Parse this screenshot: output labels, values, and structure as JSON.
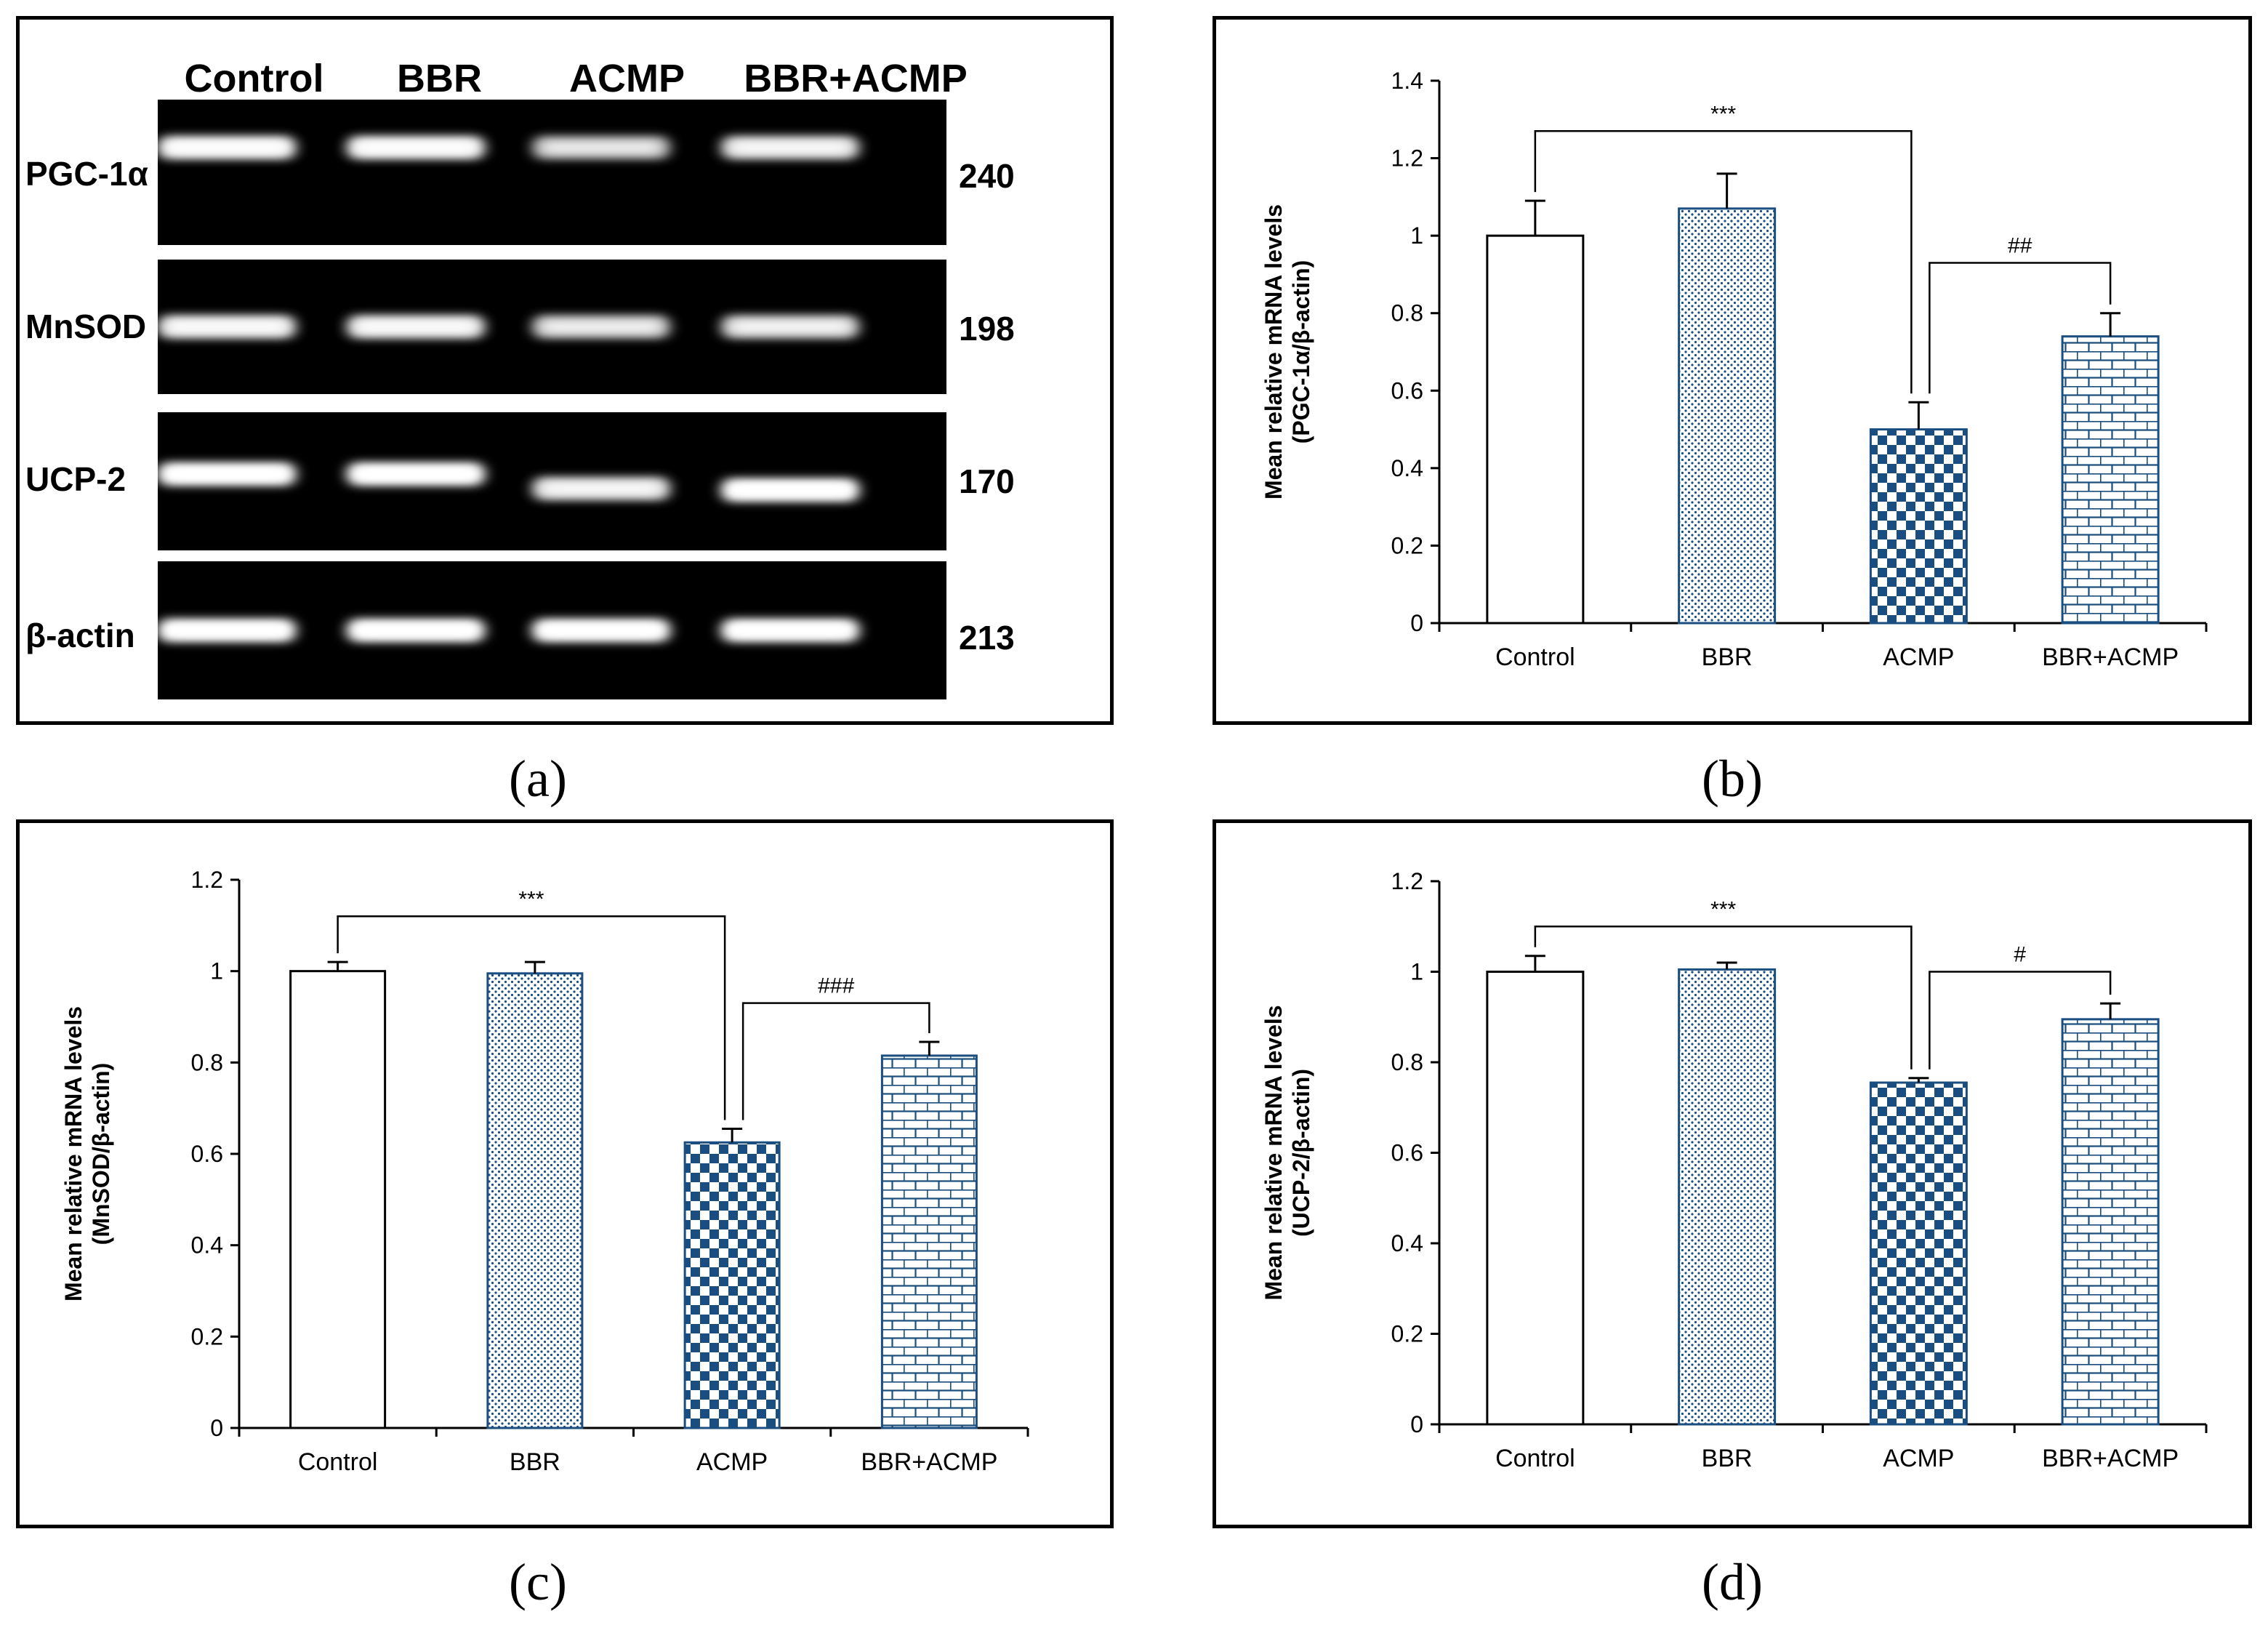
{
  "colors": {
    "accent": "#1a4d80",
    "bar_outline": "#1a4d80",
    "frame": "#000000",
    "band_bg": "#000000"
  },
  "blot": {
    "caption": "(a)",
    "columns": [
      "Control",
      "BBR",
      "ACMP",
      "BBR+ACMP"
    ],
    "rows": [
      {
        "gene": "PGC-1α",
        "size": "240",
        "intensity": [
          0.95,
          0.95,
          0.7,
          0.85
        ],
        "shift": [
          0,
          0,
          0,
          0
        ]
      },
      {
        "gene": "MnSOD",
        "size": "198",
        "intensity": [
          0.9,
          0.9,
          0.75,
          0.8
        ],
        "shift": [
          0,
          0,
          0,
          0
        ]
      },
      {
        "gene": "UCP-2",
        "size": "170",
        "intensity": [
          1.0,
          1.0,
          0.85,
          1.0
        ],
        "shift": [
          -10,
          -10,
          10,
          12
        ]
      },
      {
        "gene": "β-actin",
        "size": "213",
        "intensity": [
          1.0,
          1.0,
          1.0,
          1.0
        ],
        "shift": [
          0,
          0,
          0,
          0
        ]
      }
    ]
  },
  "chart_data": [
    {
      "panel": "b",
      "caption": "(b)",
      "type": "bar",
      "ylabel_line1": "Mean relative mRNA levels",
      "ylabel_line2": "(PGC-1α/β-actin)",
      "categories": [
        "Control",
        "BBR",
        "ACMP",
        "BBR+ACMP"
      ],
      "values": [
        1.0,
        1.07,
        0.5,
        0.74
      ],
      "errors": [
        0.09,
        0.09,
        0.07,
        0.06
      ],
      "ylim": [
        0,
        1.4
      ],
      "yticks": [
        "0",
        "0.2",
        "0.4",
        "0.6",
        "0.8",
        "1",
        "1.2",
        "1.4"
      ],
      "patterns": [
        "none",
        "dots",
        "checker",
        "brick"
      ],
      "annotations": [
        {
          "from": 0,
          "to": 2,
          "y": 1.27,
          "label": "***"
        },
        {
          "from": 2,
          "to": 3,
          "y": 0.93,
          "label": "##"
        }
      ]
    },
    {
      "panel": "c",
      "caption": "(c)",
      "type": "bar",
      "ylabel_line1": "Mean relative mRNA levels",
      "ylabel_line2": "(MnSOD/β-actin)",
      "categories": [
        "Control",
        "BBR",
        "ACMP",
        "BBR+ACMP"
      ],
      "values": [
        1.0,
        0.995,
        0.625,
        0.815
      ],
      "errors": [
        0.02,
        0.025,
        0.03,
        0.03
      ],
      "ylim": [
        0,
        1.2
      ],
      "yticks": [
        "0",
        "0.2",
        "0.4",
        "0.6",
        "0.8",
        "1",
        "1.2"
      ],
      "patterns": [
        "none",
        "dots",
        "checker",
        "brick"
      ],
      "annotations": [
        {
          "from": 0,
          "to": 2,
          "y": 1.12,
          "label": "***"
        },
        {
          "from": 2,
          "to": 3,
          "y": 0.93,
          "label": "###"
        }
      ]
    },
    {
      "panel": "d",
      "caption": "(d)",
      "type": "bar",
      "ylabel_line1": "Mean relative mRNA levels",
      "ylabel_line2": "(UCP-2/β-actin)",
      "categories": [
        "Control",
        "BBR",
        "ACMP",
        "BBR+ACMP"
      ],
      "values": [
        1.0,
        1.005,
        0.755,
        0.895
      ],
      "errors": [
        0.035,
        0.015,
        0.01,
        0.035
      ],
      "ylim": [
        0,
        1.2
      ],
      "yticks": [
        "0",
        "0.2",
        "0.4",
        "0.6",
        "0.8",
        "1",
        "1.2"
      ],
      "patterns": [
        "none",
        "dots",
        "checker",
        "brick"
      ],
      "annotations": [
        {
          "from": 0,
          "to": 2,
          "y": 1.1,
          "label": "***"
        },
        {
          "from": 2,
          "to": 3,
          "y": 1.0,
          "label": "#"
        }
      ]
    }
  ]
}
